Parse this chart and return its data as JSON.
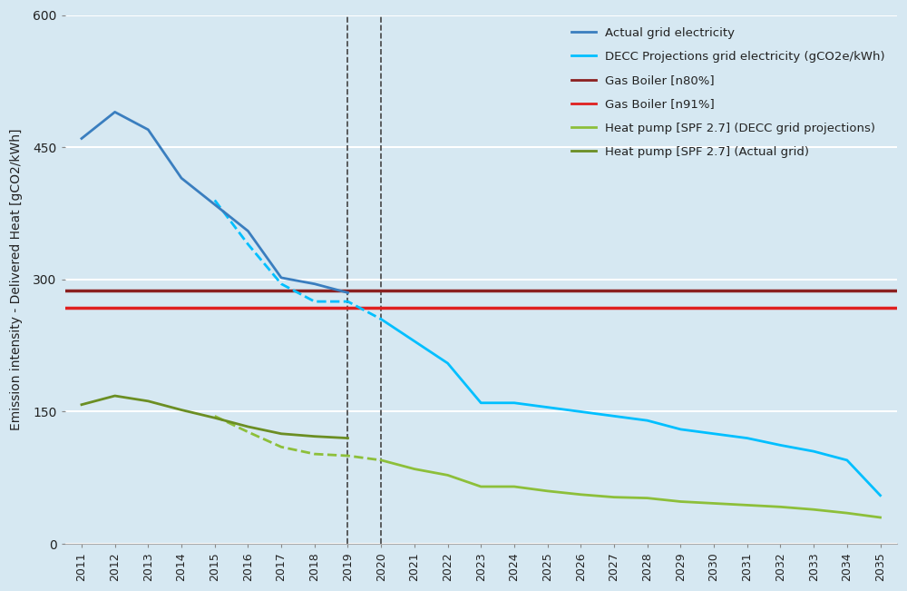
{
  "background_color": "#d6e8f2",
  "plot_bg_color": "#d6e8f2",
  "years_actual": [
    2011,
    2012,
    2013,
    2014,
    2015,
    2016,
    2017,
    2018,
    2019
  ],
  "actual_grid": [
    460,
    490,
    470,
    415,
    385,
    355,
    302,
    295,
    285
  ],
  "years_decc_dashed": [
    2015,
    2016,
    2017,
    2018,
    2019,
    2020
  ],
  "decc_grid_dashed": [
    390,
    340,
    295,
    275,
    275,
    255
  ],
  "years_decc_solid": [
    2020,
    2021,
    2022,
    2023,
    2024,
    2025,
    2026,
    2027,
    2028,
    2029,
    2030,
    2031,
    2032,
    2033,
    2034,
    2035
  ],
  "decc_grid_solid": [
    255,
    230,
    205,
    160,
    160,
    155,
    150,
    145,
    140,
    130,
    125,
    120,
    112,
    105,
    95,
    55
  ],
  "gas_boiler_n80": 288,
  "gas_boiler_n91": 268,
  "hp_actual_years": [
    2011,
    2012,
    2013,
    2014,
    2015,
    2016,
    2017,
    2018,
    2019
  ],
  "hp_actual": [
    158,
    168,
    162,
    152,
    143,
    133,
    125,
    122,
    120
  ],
  "hp_decc_dashed_years": [
    2015,
    2016,
    2017,
    2018,
    2019,
    2020
  ],
  "hp_decc_dashed": [
    145,
    127,
    110,
    102,
    100,
    95
  ],
  "hp_decc_solid_years": [
    2020,
    2021,
    2022,
    2023,
    2024,
    2025,
    2026,
    2027,
    2028,
    2029,
    2030,
    2031,
    2032,
    2033,
    2034,
    2035
  ],
  "hp_decc_solid": [
    95,
    85,
    78,
    65,
    65,
    60,
    56,
    53,
    52,
    48,
    46,
    44,
    42,
    39,
    35,
    30
  ],
  "vline_2019": 2019,
  "vline_2020": 2020,
  "color_actual_grid": "#3a7ebf",
  "color_decc_grid": "#00bfff",
  "color_gas_n80": "#8b2020",
  "color_gas_n91": "#e02020",
  "color_hp_actual": "#6b8e23",
  "color_hp_decc": "#8dbf3a",
  "ylabel": "Emission intensity - Delivered Heat [gCO2/kWh]",
  "ylim": [
    0,
    600
  ],
  "yticks": [
    0,
    150,
    300,
    450,
    600
  ],
  "xlim_min": 2011,
  "xlim_max": 2035,
  "legend_labels": [
    "Actual grid electricity",
    "DECC Projections grid electricity (gCO2e/kWh)",
    "Gas Boiler [n80%]",
    "Gas Boiler [n91%]",
    "Heat pump [SPF 2.7] (DECC grid projections)",
    "Heat pump [SPF 2.7] (Actual grid)"
  ]
}
